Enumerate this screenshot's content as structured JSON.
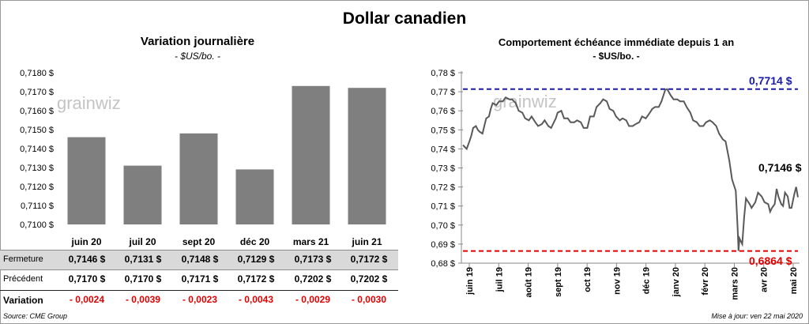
{
  "title": "Dollar canadien",
  "left_chart": {
    "subtitle": "Variation  journalière",
    "unit": "- $US/bo. -"
  },
  "right_chart": {
    "subtitle": "Comportement échéance immédiate depuis 1 an",
    "unit": "- $US/bo. -",
    "high_label": "0,7714 $",
    "low_label": "0,6864 $",
    "last_label": "0,7146 $"
  },
  "watermark": "grainwiz",
  "colors": {
    "bar": "#7f7f7f",
    "line": "#595959",
    "high": "#1a1aa8",
    "low": "#e00000",
    "negative": "#e00000",
    "row_shade": "#d9d9d9"
  },
  "table": {
    "row_labels": {
      "close": "Fermeture",
      "previous": "Précédent",
      "variation": "Variation"
    },
    "close": [
      "0,7146  $",
      "0,7131  $",
      "0,7148  $",
      "0,7129  $",
      "0,7173  $",
      "0,7172  $"
    ],
    "previous": [
      "0,7170  $",
      "0,7170  $",
      "0,7171  $",
      "0,7172  $",
      "0,7202  $",
      "0,7202  $"
    ],
    "variation": [
      "- 0,0024",
      "- 0,0039",
      "- 0,0023",
      "- 0,0043",
      "- 0,0029",
      "- 0,0030"
    ]
  },
  "footer": {
    "source": "Source: CME Group",
    "update": "Mise à jour: ven 22 mai 2020"
  },
  "chart_data": [
    {
      "type": "bar",
      "title": "Variation  journalière",
      "ylabel": "- $US/bo. -",
      "categories": [
        "juin 20",
        "juil 20",
        "sept 20",
        "déc 20",
        "mars 21",
        "juin 21"
      ],
      "values": [
        0.7146,
        0.7131,
        0.7148,
        0.7129,
        0.7173,
        0.7172
      ],
      "ylim": [
        0.71,
        0.718
      ],
      "yticks": [
        "0,7100 $",
        "0,7110 $",
        "0,7120 $",
        "0,7130 $",
        "0,7140 $",
        "0,7150 $",
        "0,7160 $",
        "0,7170 $",
        "0,7180 $"
      ],
      "grid": false
    },
    {
      "type": "line",
      "title": "Comportement échéance immédiate depuis 1 an",
      "ylabel": "- $US/bo. -",
      "ylim": [
        0.68,
        0.78
      ],
      "yticks": [
        "0,68 $",
        "0,69 $",
        "0,70 $",
        "0,71 $",
        "0,72 $",
        "0,73 $",
        "0,74 $",
        "0,75 $",
        "0,76 $",
        "0,77 $",
        "0,78 $"
      ],
      "xticks": [
        "juin 19",
        "juil 19",
        "août 19",
        "sept 19",
        "oct 19",
        "nov 19",
        "déc 19",
        "janv 20",
        "févr 20",
        "mars 20",
        "avr 20",
        "mai 20"
      ],
      "x_range": [
        "2019-05-27",
        "2020-05-22"
      ],
      "reference_lines": [
        {
          "label": "0,7714 $",
          "value": 0.7714,
          "style": "dashed"
        },
        {
          "label": "0,6864 $",
          "value": 0.6864,
          "style": "dashed"
        }
      ],
      "last_value": 0.7146,
      "series": [
        {
          "points": [
            [
              "2019-05-27",
              0.742
            ],
            [
              "2019-05-29",
              0.741
            ],
            [
              "2019-05-31",
              0.74
            ],
            [
              "2019-06-03",
              0.744
            ],
            [
              "2019-06-05",
              0.747
            ],
            [
              "2019-06-07",
              0.751
            ],
            [
              "2019-06-10",
              0.752
            ],
            [
              "2019-06-12",
              0.75
            ],
            [
              "2019-06-14",
              0.749
            ],
            [
              "2019-06-17",
              0.748
            ],
            [
              "2019-06-19",
              0.752
            ],
            [
              "2019-06-21",
              0.756
            ],
            [
              "2019-06-24",
              0.757
            ],
            [
              "2019-06-26",
              0.761
            ],
            [
              "2019-06-28",
              0.764
            ],
            [
              "2019-07-02",
              0.763
            ],
            [
              "2019-07-05",
              0.765
            ],
            [
              "2019-07-09",
              0.765
            ],
            [
              "2019-07-12",
              0.767
            ],
            [
              "2019-07-16",
              0.766
            ],
            [
              "2019-07-19",
              0.766
            ],
            [
              "2019-07-23",
              0.764
            ],
            [
              "2019-07-26",
              0.76
            ],
            [
              "2019-07-30",
              0.759
            ],
            [
              "2019-08-02",
              0.756
            ],
            [
              "2019-08-06",
              0.755
            ],
            [
              "2019-08-09",
              0.757
            ],
            [
              "2019-08-13",
              0.754
            ],
            [
              "2019-08-16",
              0.752
            ],
            [
              "2019-08-20",
              0.753
            ],
            [
              "2019-08-23",
              0.755
            ],
            [
              "2019-08-27",
              0.752
            ],
            [
              "2019-08-30",
              0.751
            ],
            [
              "2019-09-04",
              0.756
            ],
            [
              "2019-09-06",
              0.759
            ],
            [
              "2019-09-10",
              0.76
            ],
            [
              "2019-09-13",
              0.756
            ],
            [
              "2019-09-17",
              0.756
            ],
            [
              "2019-09-20",
              0.754
            ],
            [
              "2019-09-24",
              0.754
            ],
            [
              "2019-09-27",
              0.755
            ],
            [
              "2019-10-01",
              0.754
            ],
            [
              "2019-10-04",
              0.751
            ],
            [
              "2019-10-08",
              0.751
            ],
            [
              "2019-10-11",
              0.757
            ],
            [
              "2019-10-15",
              0.757
            ],
            [
              "2019-10-18",
              0.762
            ],
            [
              "2019-10-22",
              0.764
            ],
            [
              "2019-10-25",
              0.766
            ],
            [
              "2019-10-29",
              0.765
            ],
            [
              "2019-11-01",
              0.761
            ],
            [
              "2019-11-05",
              0.76
            ],
            [
              "2019-11-08",
              0.757
            ],
            [
              "2019-11-12",
              0.755
            ],
            [
              "2019-11-15",
              0.756
            ],
            [
              "2019-11-19",
              0.755
            ],
            [
              "2019-11-22",
              0.752
            ],
            [
              "2019-11-26",
              0.752
            ],
            [
              "2019-11-29",
              0.753
            ],
            [
              "2019-12-03",
              0.754
            ],
            [
              "2019-12-06",
              0.757
            ],
            [
              "2019-12-10",
              0.756
            ],
            [
              "2019-12-13",
              0.758
            ],
            [
              "2019-12-17",
              0.761
            ],
            [
              "2019-12-20",
              0.762
            ],
            [
              "2019-12-24",
              0.762
            ],
            [
              "2019-12-27",
              0.765
            ],
            [
              "2019-12-31",
              0.771
            ],
            [
              "2020-01-02",
              0.7714
            ],
            [
              "2020-01-06",
              0.768
            ],
            [
              "2020-01-09",
              0.766
            ],
            [
              "2020-01-13",
              0.766
            ],
            [
              "2020-01-16",
              0.765
            ],
            [
              "2020-01-20",
              0.765
            ],
            [
              "2020-01-23",
              0.762
            ],
            [
              "2020-01-27",
              0.759
            ],
            [
              "2020-01-30",
              0.755
            ],
            [
              "2020-02-03",
              0.754
            ],
            [
              "2020-02-06",
              0.752
            ],
            [
              "2020-02-10",
              0.752
            ],
            [
              "2020-02-13",
              0.754
            ],
            [
              "2020-02-17",
              0.755
            ],
            [
              "2020-02-20",
              0.754
            ],
            [
              "2020-02-24",
              0.752
            ],
            [
              "2020-02-27",
              0.748
            ],
            [
              "2020-03-02",
              0.745
            ],
            [
              "2020-03-05",
              0.744
            ],
            [
              "2020-03-09",
              0.734
            ],
            [
              "2020-03-12",
              0.724
            ],
            [
              "2020-03-16",
              0.718
            ],
            [
              "2020-03-18",
              0.698
            ],
            [
              "2020-03-19",
              0.6864
            ],
            [
              "2020-03-20",
              0.693
            ],
            [
              "2020-03-23",
              0.69
            ],
            [
              "2020-03-25",
              0.704
            ],
            [
              "2020-03-27",
              0.714
            ],
            [
              "2020-03-31",
              0.711
            ],
            [
              "2020-04-02",
              0.709
            ],
            [
              "2020-04-06",
              0.712
            ],
            [
              "2020-04-09",
              0.717
            ],
            [
              "2020-04-13",
              0.715
            ],
            [
              "2020-04-16",
              0.712
            ],
            [
              "2020-04-20",
              0.711
            ],
            [
              "2020-04-22",
              0.707
            ],
            [
              "2020-04-24",
              0.709
            ],
            [
              "2020-04-27",
              0.711
            ],
            [
              "2020-04-29",
              0.719
            ],
            [
              "2020-05-01",
              0.715
            ],
            [
              "2020-05-04",
              0.711
            ],
            [
              "2020-05-06",
              0.71
            ],
            [
              "2020-05-08",
              0.717
            ],
            [
              "2020-05-11",
              0.715
            ],
            [
              "2020-05-13",
              0.709
            ],
            [
              "2020-05-15",
              0.709
            ],
            [
              "2020-05-18",
              0.716
            ],
            [
              "2020-05-20",
              0.72
            ],
            [
              "2020-05-22",
              0.7146
            ]
          ]
        }
      ]
    }
  ]
}
